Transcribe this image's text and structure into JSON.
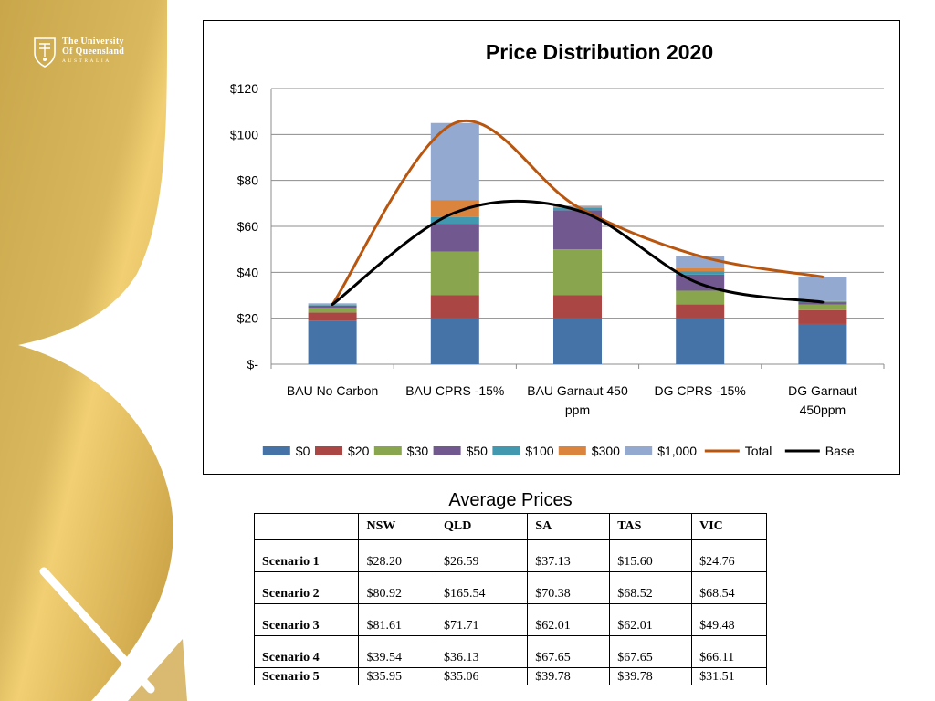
{
  "logo": {
    "line1": "The University",
    "line2": "Of Queensland",
    "line3": "AUSTRALIA"
  },
  "chart_data": {
    "type": "bar",
    "title": "Price Distribution 2020",
    "categories": [
      "BAU No Carbon",
      "BAU CPRS -15%",
      "BAU Garnaut 450 ppm",
      "DG CPRS -15%",
      "DG Garnaut 450ppm"
    ],
    "category_lines": [
      [
        "BAU No Carbon"
      ],
      [
        "BAU CPRS -15%"
      ],
      [
        "BAU Garnaut 450",
        "ppm"
      ],
      [
        "DG CPRS -15%"
      ],
      [
        "DG Garnaut",
        "450ppm"
      ]
    ],
    "y_ticks": [
      0,
      20,
      40,
      60,
      80,
      100,
      120
    ],
    "y_tick_labels": [
      "$-",
      "$20",
      "$40",
      "$60",
      "$80",
      "$100",
      "$120"
    ],
    "ylim": [
      0,
      120
    ],
    "grid": true,
    "legend_position": "bottom",
    "stacked": true,
    "series": [
      {
        "name": "$0",
        "color": "#4572A7",
        "values": [
          19,
          20,
          20,
          20,
          17.5
        ]
      },
      {
        "name": "$20",
        "color": "#AA4643",
        "values": [
          3.5,
          10,
          10,
          6,
          6
        ]
      },
      {
        "name": "$30",
        "color": "#89A54E",
        "values": [
          2,
          19,
          20,
          6,
          2.5
        ]
      },
      {
        "name": "$50",
        "color": "#71588F",
        "values": [
          1,
          12,
          17,
          7,
          1
        ]
      },
      {
        "name": "$100",
        "color": "#4198AF",
        "values": [
          0.3,
          3,
          1,
          1.5,
          0.3
        ]
      },
      {
        "name": "$300",
        "color": "#DB843D",
        "values": [
          0.3,
          7.5,
          0.5,
          1.5,
          0.2
        ]
      },
      {
        "name": "$1,000",
        "color": "#93A9CF",
        "values": [
          0.4,
          33.5,
          0.5,
          5,
          10.5
        ]
      }
    ],
    "lines": [
      {
        "name": "Total",
        "color": "#B8560F",
        "values": [
          26,
          105,
          68.5,
          47,
          38
        ]
      },
      {
        "name": "Base",
        "color": "#000000",
        "values": [
          26,
          66,
          67,
          35,
          27
        ]
      }
    ]
  },
  "table": {
    "title": "Average Prices",
    "columns": [
      "",
      "NSW",
      "QLD",
      "SA",
      "TAS",
      "VIC"
    ],
    "rows": [
      {
        "label": "Scenario 1",
        "values": [
          "$28.20",
          "$26.59",
          "$37.13",
          "$15.60",
          "$24.76"
        ]
      },
      {
        "label": "Scenario 2",
        "values": [
          "$80.92",
          "$165.54",
          "$70.38",
          "$68.52",
          "$68.54"
        ]
      },
      {
        "label": "Scenario 3",
        "values": [
          "$81.61",
          "$71.71",
          "$62.01",
          "$62.01",
          "$49.48"
        ]
      },
      {
        "label": "Scenario 4",
        "values": [
          "$39.54",
          "$36.13",
          "$67.65",
          "$67.65",
          "$66.11"
        ]
      },
      {
        "label": "Scenario 5",
        "values": [
          "$35.95",
          "$35.06",
          "$39.78",
          "$39.78",
          "$31.51"
        ]
      }
    ]
  }
}
